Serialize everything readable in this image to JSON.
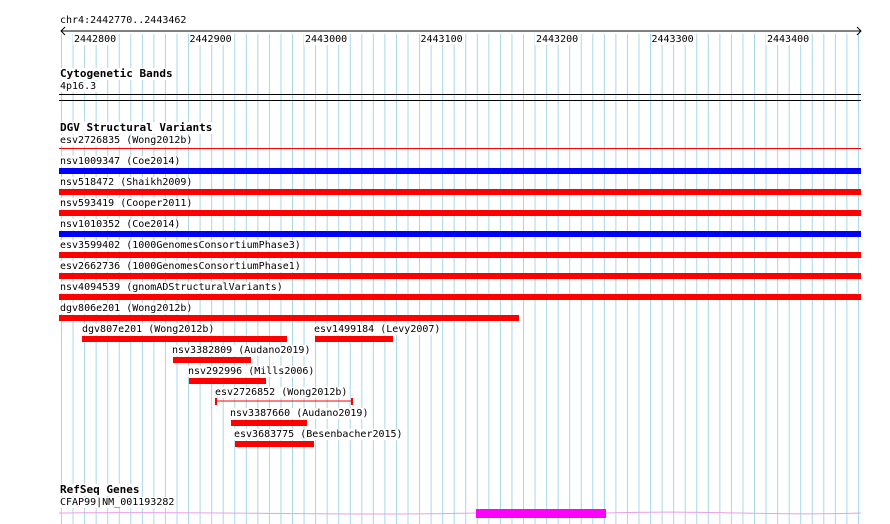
{
  "colors": {
    "grid": "#a8d8ea",
    "loss": "#ff0000",
    "gain": "#0000ff",
    "gene": "#ff00ff",
    "thin": "#e8a0e8"
  },
  "ruler": {
    "location": "chr4:2442770..2443462",
    "ticks": [
      "2442800",
      "2442900",
      "2443000",
      "2443100",
      "2443200",
      "2443300",
      "2443400"
    ]
  },
  "cytoband": {
    "title": "Cytogenetic Bands",
    "band": "4p16.3"
  },
  "dgv": {
    "title": "DGV Structural Variants",
    "features": [
      {
        "label": "esv2726835 (Wong2012b)"
      },
      {
        "label": "nsv1009347 (Coe2014)"
      },
      {
        "label": "nsv518472 (Shaikh2009)"
      },
      {
        "label": "nsv593419 (Cooper2011)"
      },
      {
        "label": "nsv1010352 (Coe2014)"
      },
      {
        "label": "esv3599402 (1000GenomesConsortiumPhase3)"
      },
      {
        "label": "esv2662736 (1000GenomesConsortiumPhase1)"
      },
      {
        "label": "nsv4094539 (gnomADStructuralVariants)"
      },
      {
        "label": "dgv806e201 (Wong2012b)"
      },
      {
        "label": "dgv807e201 (Wong2012b)"
      },
      {
        "label": "esv1499184 (Levy2007)"
      },
      {
        "label": "nsv3382809 (Audano2019)"
      },
      {
        "label": "nsv292996 (Mills2006)"
      },
      {
        "label": "esv2726852 (Wong2012b)"
      },
      {
        "label": "nsv3387660 (Audano2019)"
      },
      {
        "label": "esv3683775 (Besenbacher2015)"
      }
    ]
  },
  "refseq": {
    "title": "RefSeq Genes",
    "gene": "CFAP99|NM_001193282"
  }
}
